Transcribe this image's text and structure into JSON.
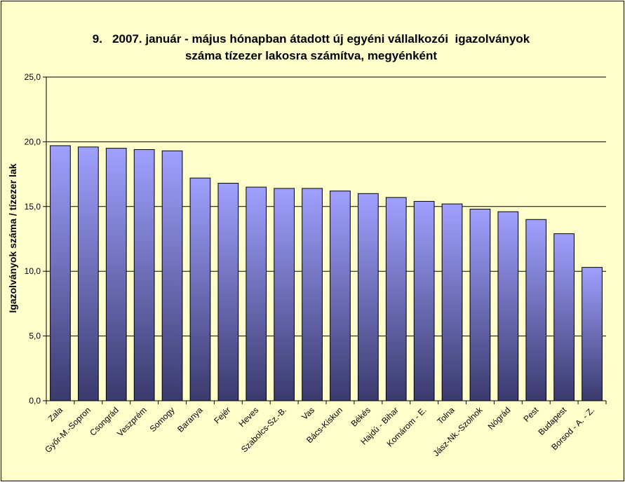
{
  "chart_data": {
    "type": "bar",
    "title_lines": [
      "9.   2007. január - május hónapban átadott új egyéni vállalkozói  igazolványok",
      "száma tízezer lakosra számítva, megyénként"
    ],
    "ylabel": "Igazolványok száma / tízezer lak",
    "xlabel": "",
    "ylim": [
      0,
      25
    ],
    "yticks": [
      "0,0",
      "5,0",
      "10,0",
      "15,0",
      "20,0",
      "25,0"
    ],
    "grid": true,
    "categories": [
      "Zala",
      "Győr-M.-Sopron",
      "Csongrád",
      "Veszprém",
      "Somogy",
      "Baranya",
      "Fejér",
      "Heves",
      "Szabolcs-Sz.-B.",
      "Vas",
      "Bács-Kiskun",
      "Békés",
      "Hajdú - Bihar",
      "Komárom - E.",
      "Tolna",
      "Jász-Nk.-Szolnok",
      "Nógrád",
      "Pest",
      "Budapest",
      "Borsod - A. - Z."
    ],
    "values": [
      19.7,
      19.6,
      19.5,
      19.4,
      19.3,
      17.2,
      16.8,
      16.5,
      16.4,
      16.4,
      16.2,
      16.0,
      15.7,
      15.4,
      15.2,
      14.8,
      14.6,
      14.0,
      12.9,
      10.3
    ],
    "colors": {
      "bar_top": "#a0a0ff",
      "bar_bottom": "#3a3a6e",
      "plot_bg": "#ffffcc",
      "grid": "#000000"
    }
  }
}
